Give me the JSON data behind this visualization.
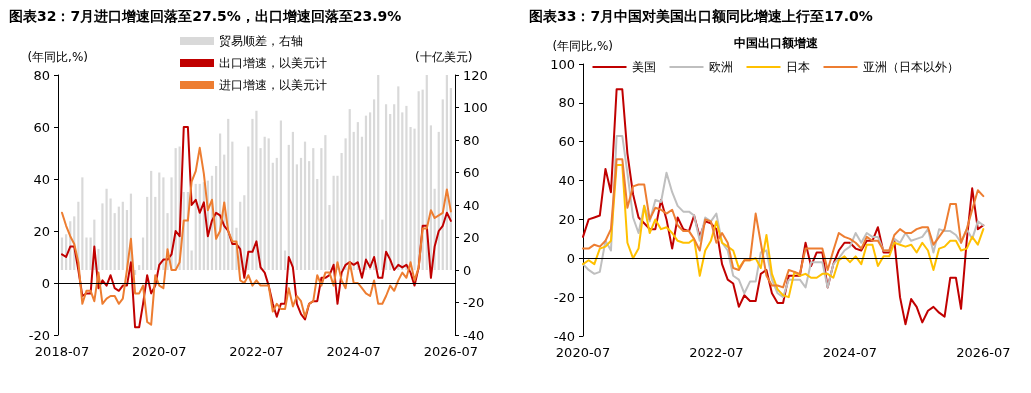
{
  "chart_data": [
    {
      "type": "line",
      "title": "图表32：7月进口增速回落至27.5%，出口增速回落至23.9%",
      "ylabel": "(年同比,%)",
      "y2label": "(十亿美元)",
      "x": [
        "2018-07",
        "2018-08",
        "2018-09",
        "2018-10",
        "2018-11",
        "2018-12",
        "2019-01",
        "2019-02",
        "2019-03",
        "2019-04",
        "2019-05",
        "2019-06",
        "2019-07",
        "2019-08",
        "2019-09",
        "2019-10",
        "2019-11",
        "2019-12",
        "2020-01",
        "2020-02",
        "2020-03",
        "2020-04",
        "2020-05",
        "2020-06",
        "2020-07",
        "2020-08",
        "2020-09",
        "2020-10",
        "2020-11",
        "2020-12",
        "2021-01",
        "2021-02",
        "2021-03",
        "2021-04",
        "2021-05",
        "2021-06",
        "2021-07",
        "2021-08",
        "2021-09",
        "2021-10",
        "2021-11",
        "2021-12",
        "2022-01",
        "2022-02",
        "2022-03",
        "2022-04",
        "2022-05",
        "2022-06",
        "2022-07",
        "2022-08",
        "2022-09",
        "2022-10",
        "2022-11",
        "2022-12",
        "2023-01",
        "2023-02",
        "2023-03",
        "2023-04",
        "2023-05",
        "2023-06",
        "2023-07",
        "2023-08",
        "2023-09",
        "2023-10",
        "2023-11",
        "2023-12",
        "2024-01",
        "2024-02",
        "2024-03",
        "2024-04",
        "2024-05",
        "2024-06",
        "2024-07",
        "2024-08",
        "2024-09",
        "2024-10",
        "2024-11",
        "2024-12",
        "2025-01",
        "2025-02",
        "2025-03",
        "2025-04",
        "2025-05",
        "2025-06",
        "2025-07",
        "2025-08",
        "2025-09",
        "2025-10",
        "2025-11",
        "2025-12",
        "2026-01",
        "2026-02",
        "2026-03",
        "2026-04",
        "2026-05",
        "2026-06",
        "2026-07"
      ],
      "series": [
        {
          "name": "贸易顺差，右轴",
          "type": "bar",
          "axis": "y2",
          "color": "#d9d9d9",
          "values": [
            20,
            22,
            30,
            33,
            42,
            57,
            20,
            20,
            31,
            13,
            41,
            50,
            44,
            35,
            39,
            42,
            37,
            47,
            -3,
            3,
            20,
            45,
            61,
            45,
            60,
            57,
            35,
            57,
            75,
            76,
            48,
            48,
            12,
            53,
            53,
            54,
            55,
            58,
            64,
            84,
            71,
            93,
            79,
            26,
            42,
            46,
            76,
            93,
            98,
            75,
            82,
            81,
            66,
            69,
            92,
            12,
            77,
            85,
            65,
            69,
            79,
            67,
            75,
            56,
            75,
            83,
            40,
            58,
            58,
            72,
            81,
            99,
            85,
            91,
            82,
            95,
            97,
            105,
            120,
            31,
            102,
            96,
            102,
            113,
            97,
            101,
            88,
            87,
            110,
            111,
            120,
            89,
            50,
            85,
            105,
            120,
            112
          ]
        },
        {
          "name": "出口增速，以美元计",
          "color": "#c00000",
          "values": [
            11,
            10,
            14,
            14,
            5,
            -5,
            -4,
            -4,
            14,
            -2,
            1,
            -1,
            3,
            -2,
            -3,
            -1,
            -1,
            8,
            -17,
            -17,
            -8,
            3,
            -4,
            -1,
            7,
            9,
            9,
            11,
            20,
            18,
            60,
            60,
            30,
            32,
            27,
            31,
            18,
            24,
            27,
            26,
            22,
            20,
            15,
            15,
            13,
            2,
            12,
            12,
            16,
            6,
            4,
            -1,
            -8,
            -13,
            -8,
            -8,
            10,
            6,
            -8,
            -12,
            -14,
            -8,
            -7,
            -7,
            2,
            2,
            3,
            7,
            -8,
            4,
            7,
            8,
            7,
            8,
            2,
            9,
            6,
            10,
            2,
            2,
            12,
            9,
            5,
            7,
            6,
            7,
            4,
            -1,
            6,
            22,
            22,
            2,
            14,
            20,
            22,
            27,
            23.9
          ]
        },
        {
          "name": "进口增速，以美元计",
          "color": "#ed7d31",
          "values": [
            27,
            22,
            18,
            15,
            8,
            -8,
            -3,
            -3,
            -7,
            4,
            -8,
            -6,
            -5,
            -5,
            -8,
            -6,
            5,
            17,
            -4,
            -4,
            -1,
            -15,
            -16,
            3,
            -1,
            -2,
            13,
            5,
            5,
            8,
            24,
            24,
            39,
            43,
            52,
            42,
            28,
            32,
            17,
            20,
            31,
            20,
            16,
            16,
            1,
            0,
            3,
            -1,
            1,
            -1,
            -1,
            -1,
            -11,
            -8,
            -10,
            -10,
            -2,
            -9,
            -5,
            -7,
            -13,
            -8,
            -7,
            3,
            -1,
            4,
            4,
            -1,
            8,
            1,
            -2,
            8,
            0,
            0,
            -2,
            -4,
            -5,
            1,
            -8,
            -8,
            -5,
            -1,
            -3,
            1,
            4,
            2,
            8,
            1,
            6,
            21,
            21,
            28,
            25,
            26,
            27,
            36,
            27.5
          ]
        }
      ],
      "xlim": [
        "2018-06",
        "2026-08"
      ],
      "xticks": [
        "2018-07",
        "2020-07",
        "2022-07",
        "2024-07",
        "2026-07"
      ],
      "ylim": [
        -20,
        80
      ],
      "yticks": [
        -20,
        0,
        20,
        40,
        60,
        80
      ],
      "y2lim": [
        -40,
        120
      ],
      "y2ticks": [
        -40,
        -20,
        0,
        20,
        40,
        60,
        80,
        100,
        120
      ],
      "ref_lines": [
        {
          "axis": "y",
          "value": 0,
          "color": "#000000"
        }
      ],
      "legend": "top",
      "grid": false
    },
    {
      "type": "line",
      "title": "图表33：7月中国对美国出口额同比增速上行至17.0%",
      "subtitle": "中国出口额增速",
      "ylabel": "(年同比,%)",
      "x": [
        "2020-07",
        "2020-08",
        "2020-09",
        "2020-10",
        "2020-11",
        "2020-12",
        "2021-01",
        "2021-02",
        "2021-03",
        "2021-04",
        "2021-05",
        "2021-06",
        "2021-07",
        "2021-08",
        "2021-09",
        "2021-10",
        "2021-11",
        "2021-12",
        "2022-01",
        "2022-02",
        "2022-03",
        "2022-04",
        "2022-05",
        "2022-06",
        "2022-07",
        "2022-08",
        "2022-09",
        "2022-10",
        "2022-11",
        "2022-12",
        "2023-01",
        "2023-02",
        "2023-03",
        "2023-04",
        "2023-05",
        "2023-06",
        "2023-07",
        "2023-08",
        "2023-09",
        "2023-10",
        "2023-11",
        "2023-12",
        "2024-01",
        "2024-02",
        "2024-03",
        "2024-04",
        "2024-05",
        "2024-06",
        "2024-07",
        "2024-08",
        "2024-09",
        "2024-10",
        "2024-11",
        "2024-12",
        "2025-01",
        "2025-02",
        "2025-03",
        "2025-04",
        "2025-05",
        "2025-06",
        "2025-07",
        "2025-08",
        "2025-09",
        "2025-10",
        "2025-11",
        "2025-12",
        "2026-01",
        "2026-02",
        "2026-03",
        "2026-04",
        "2026-05",
        "2026-06",
        "2026-07"
      ],
      "series": [
        {
          "name": "美国",
          "color": "#c00000",
          "values": [
            11,
            20,
            21,
            22,
            46,
            34,
            87,
            87,
            54,
            33,
            21,
            18,
            15,
            15,
            30,
            20,
            5,
            21,
            15,
            14,
            22,
            11,
            19,
            18,
            15,
            -3,
            -11,
            -13,
            -25,
            -19,
            -22,
            -22,
            -8,
            -6,
            -18,
            -23,
            -23,
            -9,
            -9,
            -9,
            8,
            -4,
            3,
            3,
            -15,
            -3,
            4,
            8,
            8,
            5,
            4,
            9,
            9,
            16,
            3,
            3,
            9,
            -20,
            -34,
            -21,
            -25,
            -33,
            -27,
            -25,
            -28,
            -30,
            -10,
            -10,
            -26,
            9,
            36,
            15,
            17
          ]
        },
        {
          "name": "欧洲",
          "color": "#bfbfbf",
          "values": [
            -3,
            -6,
            -8,
            -7,
            9,
            4,
            63,
            63,
            44,
            21,
            13,
            27,
            19,
            30,
            29,
            44,
            34,
            27,
            24,
            24,
            22,
            9,
            21,
            19,
            23,
            8,
            4,
            -9,
            -11,
            -18,
            -12,
            -12,
            3,
            4,
            -11,
            -18,
            -20,
            -11,
            -11,
            -11,
            -15,
            -2,
            -2,
            -2,
            -15,
            -3,
            0,
            4,
            6,
            13,
            8,
            13,
            11,
            11,
            4,
            4,
            10,
            8,
            13,
            9,
            10,
            11,
            15,
            3,
            15,
            14,
            14,
            12,
            8,
            15,
            10,
            19,
            17
          ]
        },
        {
          "name": "日本",
          "color": "#ffc000",
          "values": [
            -3,
            -1,
            -3,
            5,
            6,
            9,
            48,
            48,
            8,
            0,
            5,
            27,
            13,
            20,
            15,
            16,
            13,
            9,
            8,
            8,
            10,
            -9,
            4,
            9,
            19,
            8,
            6,
            4,
            -5,
            -1,
            -1,
            0,
            -5,
            12,
            -8,
            -16,
            -19,
            -20,
            -7,
            -9,
            -8,
            -10,
            -10,
            -8,
            -8,
            -10,
            -1,
            1,
            -2,
            1,
            -3,
            7,
            7,
            -4,
            1,
            1,
            8,
            7,
            6,
            7,
            3,
            8,
            4,
            -6,
            5,
            6,
            9,
            9,
            4,
            5,
            11,
            7,
            15
          ]
        },
        {
          "name": "亚洲（日本以外）",
          "color": "#ed7d31",
          "values": [
            5,
            5,
            7,
            6,
            9,
            15,
            51,
            51,
            26,
            37,
            38,
            38,
            20,
            26,
            25,
            23,
            25,
            17,
            14,
            14,
            10,
            4,
            20,
            19,
            8,
            13,
            8,
            -5,
            -6,
            -1,
            -1,
            23,
            8,
            -9,
            -14,
            -14,
            -15,
            -6,
            -7,
            -8,
            5,
            5,
            5,
            5,
            -6,
            4,
            13,
            11,
            10,
            8,
            5,
            11,
            9,
            9,
            4,
            4,
            12,
            15,
            13,
            13,
            15,
            16,
            16,
            7,
            11,
            15,
            28,
            28,
            8,
            15,
            25,
            35,
            32
          ]
        }
      ],
      "xlim": [
        "2020-07",
        "2026-08"
      ],
      "xticks": [
        "2020-07",
        "2022-07",
        "2024-07",
        "2026-07"
      ],
      "ylim": [
        -40,
        100
      ],
      "yticks": [
        -40,
        -20,
        0,
        20,
        40,
        60,
        80,
        100
      ],
      "ref_lines": [
        {
          "axis": "y",
          "value": 0,
          "color": "#000000"
        }
      ],
      "legend": "top",
      "grid": false
    }
  ]
}
